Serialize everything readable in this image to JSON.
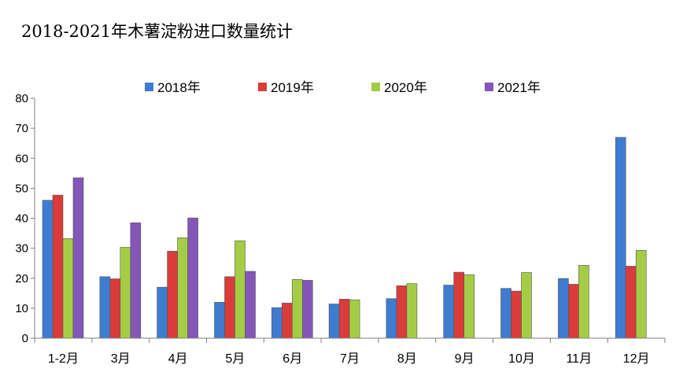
{
  "chart_data": {
    "type": "bar",
    "title": "2018-2021年木薯淀粉进口数量统计",
    "xlabel": "",
    "ylabel": "",
    "ylim": [
      0,
      80
    ],
    "yticks": [
      0,
      10,
      20,
      30,
      40,
      50,
      60,
      70,
      80
    ],
    "grid": false,
    "legend_position": "top",
    "categories": [
      "1-2月",
      "3月",
      "4月",
      "5月",
      "6月",
      "7月",
      "8月",
      "9月",
      "10月",
      "11月",
      "12月"
    ],
    "series": [
      {
        "name": "2018年",
        "color": "#3e7cd0",
        "values": [
          46,
          20.5,
          17,
          12,
          10.2,
          11.4,
          13.2,
          17.7,
          16.6,
          19.9,
          67
        ]
      },
      {
        "name": "2019年",
        "color": "#da3b3b",
        "values": [
          47.7,
          19.8,
          29,
          20.5,
          11.7,
          13,
          17.5,
          22,
          15.7,
          18,
          24
        ]
      },
      {
        "name": "2020年",
        "color": "#a4cd45",
        "values": [
          33.2,
          30.3,
          33.5,
          32.5,
          19.6,
          12.8,
          18.2,
          21.2,
          21.9,
          24.3,
          29.3
        ]
      },
      {
        "name": "2021年",
        "color": "#8456b8",
        "values": [
          53.5,
          38.5,
          40.1,
          22.3,
          19.3,
          null,
          null,
          null,
          null,
          null,
          null
        ]
      }
    ]
  }
}
